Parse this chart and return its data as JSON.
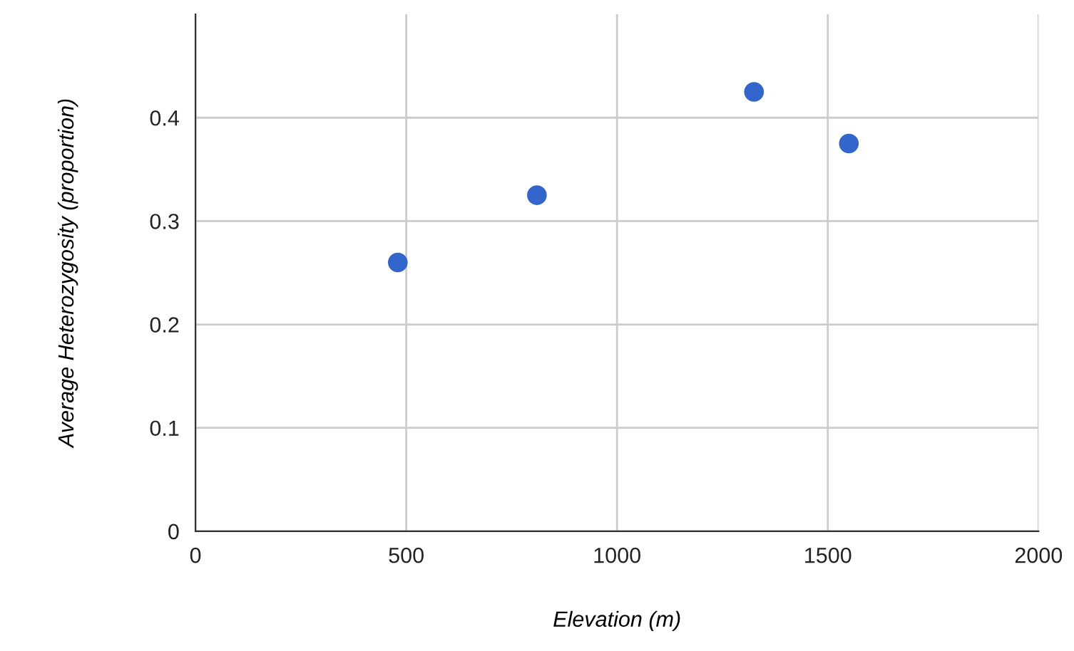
{
  "chart_data": {
    "type": "scatter",
    "xlabel": "Elevation (m)",
    "ylabel": "Average Heterozygosity (proportion)",
    "x": [
      480,
      810,
      1325,
      1550
    ],
    "series": [
      {
        "color": "#3366cc",
        "values": [
          0.26,
          0.325,
          0.425,
          0.375
        ]
      }
    ],
    "xlim": [
      0,
      2000
    ],
    "xticks": [
      0,
      500,
      1000,
      1500,
      2000
    ],
    "ylim": [
      0,
      0.5
    ],
    "yticks": [
      0,
      0.1,
      0.2,
      0.3,
      0.4
    ],
    "grid": true,
    "marker": "circle",
    "legend": false
  }
}
